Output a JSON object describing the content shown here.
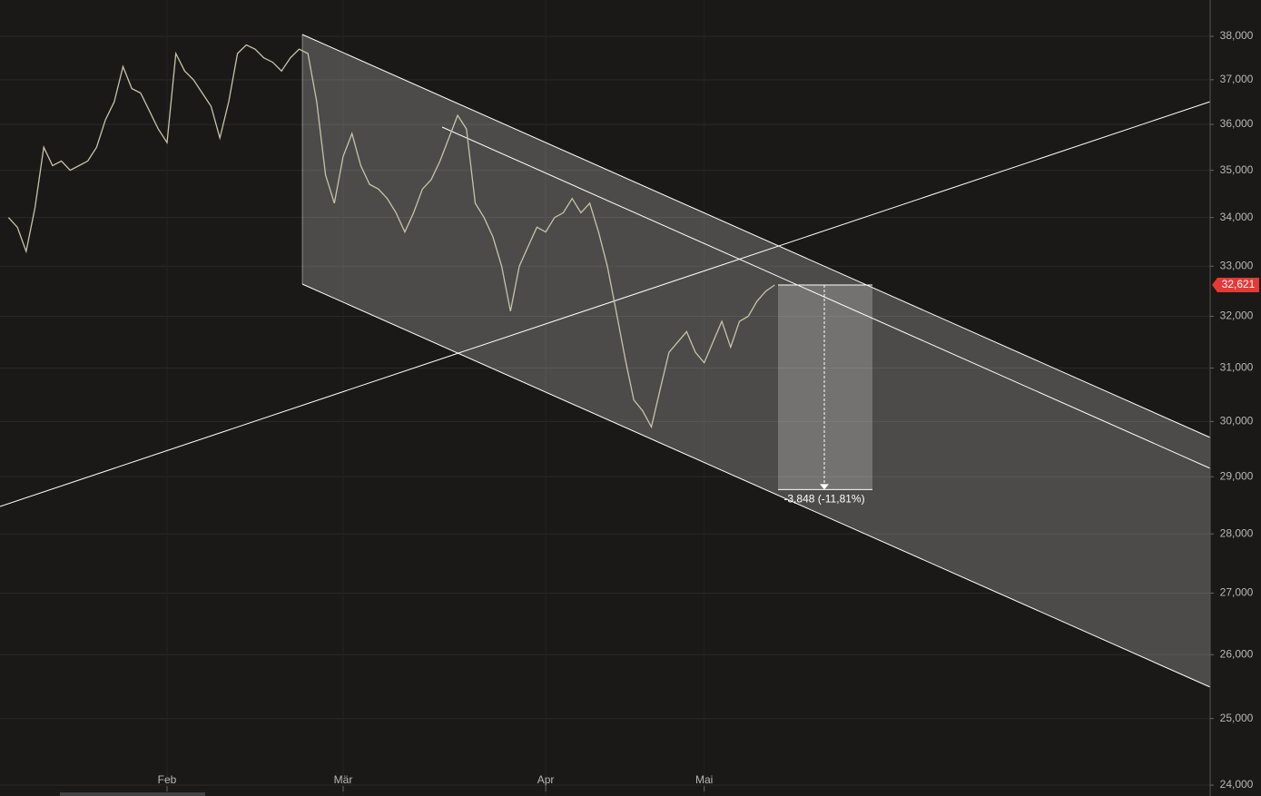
{
  "chart_data": {
    "type": "line",
    "color": "#c9c3a6",
    "log_scale": true,
    "grid": true,
    "ylim": [
      23840,
      38856
    ],
    "yticks": [
      {
        "value": 38000,
        "label": "38,000"
      },
      {
        "value": 37000,
        "label": "37,000"
      },
      {
        "value": 36000,
        "label": "36,000"
      },
      {
        "value": 35000,
        "label": "35,000"
      },
      {
        "value": 34000,
        "label": "34,000"
      },
      {
        "value": 33000,
        "label": "33,000"
      },
      {
        "value": 32000,
        "label": "32,000"
      },
      {
        "value": 31000,
        "label": "31,000"
      },
      {
        "value": 30000,
        "label": "30,000"
      },
      {
        "value": 29000,
        "label": "29,000"
      },
      {
        "value": 28000,
        "label": "28,000"
      },
      {
        "value": 27000,
        "label": "27,000"
      },
      {
        "value": 26000,
        "label": "26,000"
      },
      {
        "value": 25000,
        "label": "25,000"
      },
      {
        "value": 24000,
        "label": "24,000"
      }
    ],
    "categories": [
      null,
      null,
      null,
      null,
      null,
      null,
      null,
      null,
      null,
      null,
      null,
      null,
      null,
      null,
      null,
      null,
      null,
      null,
      "Feb",
      null,
      null,
      null,
      null,
      null,
      null,
      null,
      null,
      null,
      null,
      null,
      null,
      null,
      null,
      null,
      null,
      null,
      null,
      null,
      "Mär",
      null,
      null,
      null,
      null,
      null,
      null,
      null,
      null,
      null,
      null,
      null,
      null,
      null,
      null,
      null,
      null,
      null,
      null,
      null,
      null,
      null,
      null,
      "Apr",
      null,
      null,
      null,
      null,
      null,
      null,
      null,
      null,
      null,
      null,
      null,
      null,
      null,
      null,
      null,
      null,
      null,
      "Mai",
      null,
      null,
      null,
      null,
      null,
      null,
      null,
      null
    ],
    "values": [
      34000,
      33800,
      33300,
      34200,
      35500,
      35100,
      35200,
      35000,
      35100,
      35200,
      35500,
      36100,
      36500,
      37300,
      36800,
      36700,
      36300,
      35900,
      35600,
      37600,
      37200,
      37000,
      36700,
      36400,
      35700,
      36500,
      37600,
      37800,
      37700,
      37500,
      37400,
      37200,
      37500,
      37700,
      37600,
      36500,
      34900,
      34300,
      35300,
      35800,
      35100,
      34700,
      34600,
      34400,
      34100,
      33700,
      34100,
      34600,
      34800,
      35200,
      35700,
      36200,
      35900,
      34300,
      34000,
      33600,
      33000,
      32100,
      33000,
      33400,
      33800,
      33700,
      34000,
      34100,
      34400,
      34100,
      34300,
      33700,
      33000,
      32100,
      31200,
      30400,
      30200,
      29900,
      30600,
      31300,
      31500,
      31700,
      31300,
      31100,
      31500,
      31900,
      31400,
      31900,
      32000,
      32300,
      32500,
      32621
    ],
    "last_price": {
      "value": 32621,
      "label": "32,621"
    },
    "measure": {
      "from": 32621,
      "to": 28773,
      "label": "-3,848 (-11,81%)"
    }
  }
}
